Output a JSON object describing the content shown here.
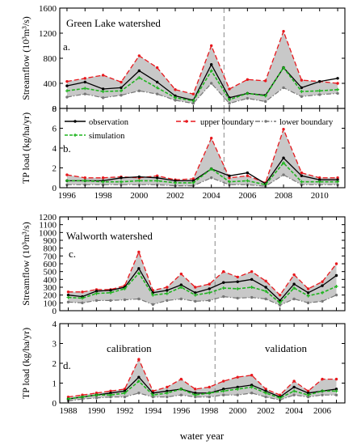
{
  "colors": {
    "observation": "#000000",
    "upper": "#e8181d",
    "lower": "#777777",
    "simulation": "#1fb51f",
    "band": "#c8c8c8",
    "divider": "#888888"
  },
  "figure": {
    "xlabel": "water year"
  },
  "chart_data": [
    {
      "type": "line",
      "panel": "a.",
      "title": "Green Lake watershed",
      "ylabel": "Streamflow (10³m³/s)",
      "ylim": [
        0,
        1600
      ],
      "yticks": [
        "0",
        "400",
        "800",
        "1200",
        "1600"
      ],
      "xlim": [
        1995.6,
        2011.4
      ],
      "xticks": [],
      "divider_x": 2004.7,
      "grid": false,
      "x": [
        1996,
        1997,
        1998,
        1999,
        2000,
        2001,
        2002,
        2003,
        2004,
        2005,
        2006,
        2007,
        2008,
        2009,
        2010,
        2011
      ],
      "series": [
        {
          "name": "observation",
          "values": [
            360,
            420,
            310,
            330,
            600,
            420,
            200,
            130,
            700,
            170,
            240,
            210,
            650,
            330,
            430,
            480
          ]
        },
        {
          "name": "upper boundary",
          "values": [
            430,
            480,
            530,
            420,
            840,
            650,
            300,
            230,
            1000,
            310,
            460,
            440,
            1230,
            450,
            430,
            400
          ]
        },
        {
          "name": "lower boundary",
          "values": [
            180,
            230,
            170,
            210,
            280,
            230,
            130,
            80,
            400,
            80,
            160,
            110,
            330,
            190,
            220,
            240
          ]
        },
        {
          "name": "simulation",
          "values": [
            280,
            320,
            270,
            280,
            490,
            330,
            170,
            120,
            600,
            140,
            240,
            200,
            650,
            270,
            280,
            300
          ]
        }
      ]
    },
    {
      "type": "line",
      "panel": "b.",
      "ylabel": "TP load (kg/ha/yr)",
      "ylim": [
        0,
        8
      ],
      "yticks": [
        "0",
        "2",
        "4",
        "6",
        "8"
      ],
      "xlim": [
        1995.6,
        2011.4
      ],
      "xticks": [
        "1996",
        "1998",
        "2000",
        "2002",
        "2004",
        "2006",
        "2008",
        "2010"
      ],
      "divider_x": 2004.7,
      "grid": false,
      "legend": "top",
      "x": [
        1996,
        1997,
        1998,
        1999,
        2000,
        2001,
        2002,
        2003,
        2004,
        2005,
        2006,
        2007,
        2008,
        2009,
        2010,
        2011
      ],
      "series": [
        {
          "name": "observation",
          "values": [
            0.7,
            0.7,
            0.7,
            1.0,
            1.1,
            1.0,
            0.7,
            0.7,
            1.9,
            1.2,
            1.5,
            0.4,
            3.0,
            1.2,
            0.8,
            0.8
          ]
        },
        {
          "name": "upper boundary",
          "values": [
            1.3,
            1.0,
            1.0,
            1.1,
            1.0,
            1.2,
            0.8,
            0.9,
            5.0,
            1.0,
            1.2,
            0.5,
            5.9,
            1.5,
            1.0,
            1.0
          ]
        },
        {
          "name": "lower boundary",
          "values": [
            0.3,
            0.3,
            0.3,
            0.3,
            0.3,
            0.3,
            0.2,
            0.2,
            1.0,
            0.3,
            0.3,
            0.15,
            1.3,
            0.3,
            0.3,
            0.3
          ]
        },
        {
          "name": "simulation",
          "values": [
            0.7,
            0.7,
            0.6,
            0.6,
            0.7,
            0.7,
            0.5,
            0.5,
            1.9,
            0.6,
            0.7,
            0.3,
            2.5,
            0.6,
            0.6,
            0.6
          ]
        }
      ]
    },
    {
      "type": "line",
      "panel": "c.",
      "title": "Walworth watershed",
      "ylabel": "Streamflow (10³m³/s)",
      "ylim": [
        0,
        1200
      ],
      "yticks": [
        "0",
        "100",
        "200",
        "300",
        "400",
        "500",
        "600",
        "700",
        "800",
        "900",
        "1000",
        "1100",
        "1200"
      ],
      "xlim": [
        1987.4,
        2007.6
      ],
      "xticks": [],
      "divider_x": 1998.4,
      "grid": false,
      "x": [
        1988,
        1989,
        1990,
        1991,
        1992,
        1993,
        1994,
        1995,
        1996,
        1997,
        1998,
        1999,
        2000,
        2001,
        2002,
        2003,
        2004,
        2005,
        2006,
        2007
      ],
      "series": [
        {
          "name": "observation",
          "values": [
            200,
            180,
            250,
            260,
            300,
            540,
            230,
            260,
            330,
            230,
            280,
            360,
            370,
            400,
            300,
            130,
            340,
            230,
            320,
            450
          ]
        },
        {
          "name": "upper boundary",
          "values": [
            240,
            240,
            270,
            270,
            320,
            750,
            260,
            300,
            470,
            300,
            340,
            500,
            430,
            500,
            380,
            200,
            460,
            280,
            370,
            600
          ]
        },
        {
          "name": "lower boundary",
          "values": [
            110,
            100,
            130,
            130,
            140,
            150,
            80,
            130,
            150,
            120,
            130,
            180,
            160,
            170,
            150,
            70,
            150,
            100,
            120,
            200
          ]
        },
        {
          "name": "simulation",
          "values": [
            170,
            160,
            220,
            230,
            280,
            480,
            200,
            220,
            300,
            200,
            230,
            290,
            280,
            300,
            250,
            100,
            290,
            190,
            230,
            310
          ]
        }
      ]
    },
    {
      "type": "line",
      "panel": "d.",
      "ylabel": "TP load (kg/ha/yr)",
      "ylim": [
        0,
        4
      ],
      "yticks": [
        "0",
        "1",
        "2",
        "3",
        "4"
      ],
      "xlim": [
        1987.4,
        2007.6
      ],
      "xticks": [
        "1988",
        "1990",
        "1992",
        "1994",
        "1996",
        "1998",
        "2000",
        "2002",
        "2004",
        "2006"
      ],
      "divider_x": 1998.4,
      "annotations": [
        "calibration",
        "validation"
      ],
      "grid": false,
      "x": [
        1988,
        1989,
        1990,
        1991,
        1992,
        1993,
        1994,
        1995,
        1996,
        1997,
        1998,
        1999,
        2000,
        2001,
        2002,
        2003,
        2004,
        2005,
        2006,
        2007
      ],
      "series": [
        {
          "name": "observation",
          "values": [
            0.2,
            0.3,
            0.4,
            0.5,
            0.6,
            1.3,
            0.5,
            0.6,
            0.7,
            0.5,
            0.5,
            0.7,
            0.8,
            0.9,
            0.6,
            0.3,
            0.8,
            0.5,
            0.6,
            0.7
          ]
        },
        {
          "name": "upper boundary",
          "values": [
            0.3,
            0.4,
            0.5,
            0.6,
            0.7,
            2.2,
            0.6,
            0.8,
            1.2,
            0.7,
            0.8,
            1.1,
            1.3,
            1.4,
            0.7,
            0.4,
            1.1,
            0.6,
            1.2,
            1.2
          ]
        },
        {
          "name": "lower boundary",
          "values": [
            0.1,
            0.2,
            0.25,
            0.3,
            0.3,
            0.5,
            0.3,
            0.3,
            0.4,
            0.3,
            0.3,
            0.4,
            0.4,
            0.5,
            0.3,
            0.15,
            0.4,
            0.3,
            0.4,
            0.4
          ]
        },
        {
          "name": "simulation",
          "values": [
            0.2,
            0.3,
            0.4,
            0.4,
            0.5,
            1.1,
            0.4,
            0.5,
            0.7,
            0.4,
            0.5,
            0.6,
            0.7,
            0.8,
            0.5,
            0.25,
            0.6,
            0.4,
            0.6,
            0.6
          ]
        }
      ]
    }
  ]
}
